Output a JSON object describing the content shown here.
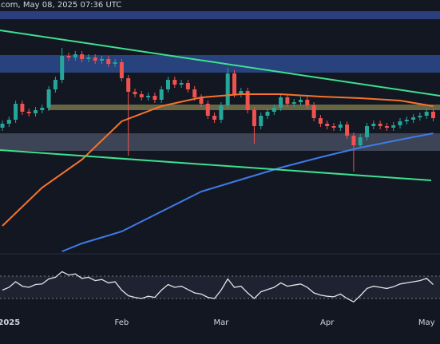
{
  "chart_data": {
    "type": "candlestick",
    "title": ".com, May 08, 2025 07:36 UTC",
    "categories": [
      null,
      "2025",
      null,
      null,
      null,
      null,
      null,
      null,
      null,
      null,
      null,
      null,
      null,
      null,
      null,
      null,
      null,
      null,
      "Feb",
      null,
      null,
      null,
      null,
      null,
      null,
      null,
      null,
      null,
      null,
      null,
      null,
      null,
      null,
      "Mar",
      null,
      null,
      null,
      null,
      null,
      null,
      null,
      null,
      null,
      null,
      null,
      null,
      null,
      null,
      null,
      "Apr",
      null,
      null,
      null,
      null,
      null,
      null,
      null,
      null,
      null,
      null,
      null,
      null,
      null,
      null,
      "May",
      null
    ],
    "open": [
      150,
      155,
      160,
      180,
      170,
      168,
      172,
      175,
      198,
      210,
      240,
      238,
      242,
      236,
      238,
      234,
      236,
      230,
      232,
      212,
      195,
      192,
      188,
      190,
      185,
      198,
      210,
      204,
      206,
      198,
      188,
      180,
      165,
      160,
      178,
      218,
      192,
      196,
      172,
      152,
      165,
      170,
      175,
      188,
      180,
      182,
      185,
      178,
      162,
      155,
      152,
      150,
      154,
      140,
      128,
      138,
      152,
      155,
      152,
      150,
      153,
      158,
      160,
      163,
      165,
      170
    ],
    "high": [
      159,
      164,
      184,
      184,
      174,
      176,
      179,
      202,
      214,
      250,
      244,
      246,
      246,
      242,
      242,
      240,
      240,
      236,
      236,
      216,
      199,
      196,
      194,
      194,
      202,
      214,
      214,
      210,
      210,
      202,
      192,
      184,
      169,
      182,
      225,
      222,
      200,
      200,
      176,
      169,
      174,
      179,
      192,
      192,
      186,
      189,
      189,
      182,
      166,
      159,
      156,
      158,
      158,
      144,
      142,
      156,
      159,
      159,
      156,
      157,
      162,
      164,
      167,
      169,
      174,
      174
    ],
    "low": [
      146,
      151,
      156,
      166,
      164,
      164,
      168,
      171,
      194,
      206,
      234,
      234,
      232,
      232,
      230,
      230,
      226,
      226,
      208,
      115,
      188,
      184,
      184,
      181,
      181,
      194,
      200,
      200,
      194,
      184,
      176,
      161,
      156,
      156,
      174,
      188,
      188,
      168,
      130,
      148,
      161,
      166,
      171,
      176,
      176,
      178,
      174,
      158,
      151,
      148,
      146,
      146,
      136,
      95,
      124,
      134,
      148,
      148,
      146,
      146,
      149,
      154,
      156,
      159,
      161,
      158
    ],
    "close": [
      155,
      160,
      180,
      170,
      168,
      172,
      175,
      198,
      210,
      240,
      238,
      242,
      236,
      238,
      234,
      236,
      230,
      232,
      212,
      195,
      192,
      188,
      190,
      185,
      198,
      210,
      204,
      206,
      198,
      188,
      180,
      165,
      160,
      178,
      218,
      192,
      196,
      172,
      152,
      165,
      170,
      175,
      188,
      180,
      182,
      185,
      178,
      162,
      155,
      152,
      150,
      154,
      140,
      128,
      138,
      152,
      155,
      152,
      150,
      153,
      158,
      160,
      163,
      165,
      170,
      162
    ],
    "up_color": "#26a69a",
    "down_color": "#ef5350",
    "ylim": [
      -10,
      310
    ],
    "overlays": [
      {
        "color": "#f7732a",
        "x": [
          0,
          6,
          12,
          18,
          24,
          30,
          36,
          42,
          48,
          54,
          60,
          65
        ],
        "values": [
          27,
          75,
          110,
          158,
          177,
          188,
          192,
          192,
          189,
          187,
          184,
          177
        ]
      },
      {
        "color": "#3f7be8",
        "x": [
          9,
          12,
          18,
          24,
          30,
          36,
          42,
          48,
          54,
          60,
          65
        ],
        "values": [
          -5,
          5,
          20,
          45,
          70,
          85,
          100,
          113,
          125,
          135,
          143
        ]
      }
    ],
    "rsi": {
      "color": "#e0e3eb",
      "ylim": [
        0,
        100
      ],
      "levels": [
        30,
        70
      ],
      "values": [
        45,
        50,
        60,
        52,
        50,
        55,
        56,
        65,
        68,
        78,
        72,
        74,
        66,
        68,
        62,
        64,
        58,
        60,
        45,
        35,
        32,
        30,
        34,
        32,
        45,
        55,
        50,
        52,
        46,
        40,
        38,
        32,
        30,
        45,
        65,
        50,
        52,
        40,
        30,
        42,
        46,
        50,
        58,
        52,
        54,
        56,
        50,
        40,
        36,
        34,
        33,
        38,
        30,
        24,
        35,
        48,
        52,
        50,
        48,
        51,
        56,
        58,
        60,
        62,
        66,
        55
      ]
    }
  }
}
